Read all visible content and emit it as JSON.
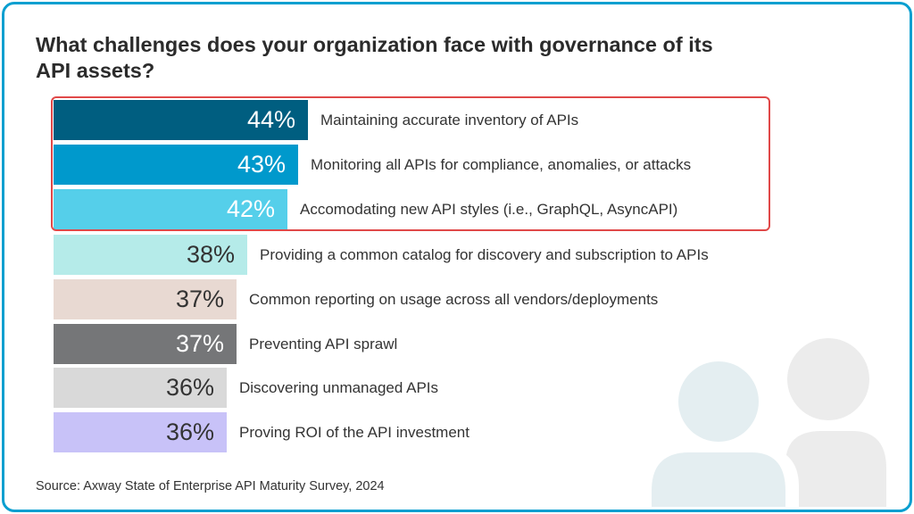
{
  "title": "What challenges does your organization face with governance of its API assets?",
  "source": "Source: Axway State of Enterprise API Maturity Survey, 2024",
  "chart_data": {
    "type": "bar",
    "orientation": "horizontal",
    "title": "What challenges does your organization face with governance of its API assets?",
    "categories": [
      "Maintaining accurate inventory of APIs",
      "Monitoring all APIs for compliance, anomalies, or attacks",
      "Accomodating new API styles (i.e., GraphQL, AsyncAPI)",
      "Providing a common catalog for discovery and subscription to APIs",
      "Common reporting on usage across all vendors/deployments",
      "Preventing API sprawl",
      "Discovering unmanaged APIs",
      "Proving ROI of the API investment"
    ],
    "values": [
      44,
      43,
      42,
      38,
      37,
      37,
      36,
      36
    ],
    "value_labels": [
      "44%",
      "43%",
      "42%",
      "38%",
      "37%",
      "37%",
      "36%",
      "36%"
    ],
    "unit": "%",
    "colors": [
      "#005e80",
      "#0099cc",
      "#55cfea",
      "#b5ebe9",
      "#e8d9d2",
      "#757678",
      "#d9d9d9",
      "#c8c2f8"
    ],
    "label_colors": [
      "#ffffff",
      "#ffffff",
      "#ffffff",
      "#333333",
      "#333333",
      "#ffffff",
      "#333333",
      "#333333"
    ],
    "highlighted": [
      0,
      1,
      2
    ],
    "highlight_color": "#e04848",
    "grid": false,
    "legend": "none"
  },
  "colors": {
    "frame": "#0a9fd0",
    "person_front": "#e4eef1",
    "person_back": "#ececec"
  }
}
